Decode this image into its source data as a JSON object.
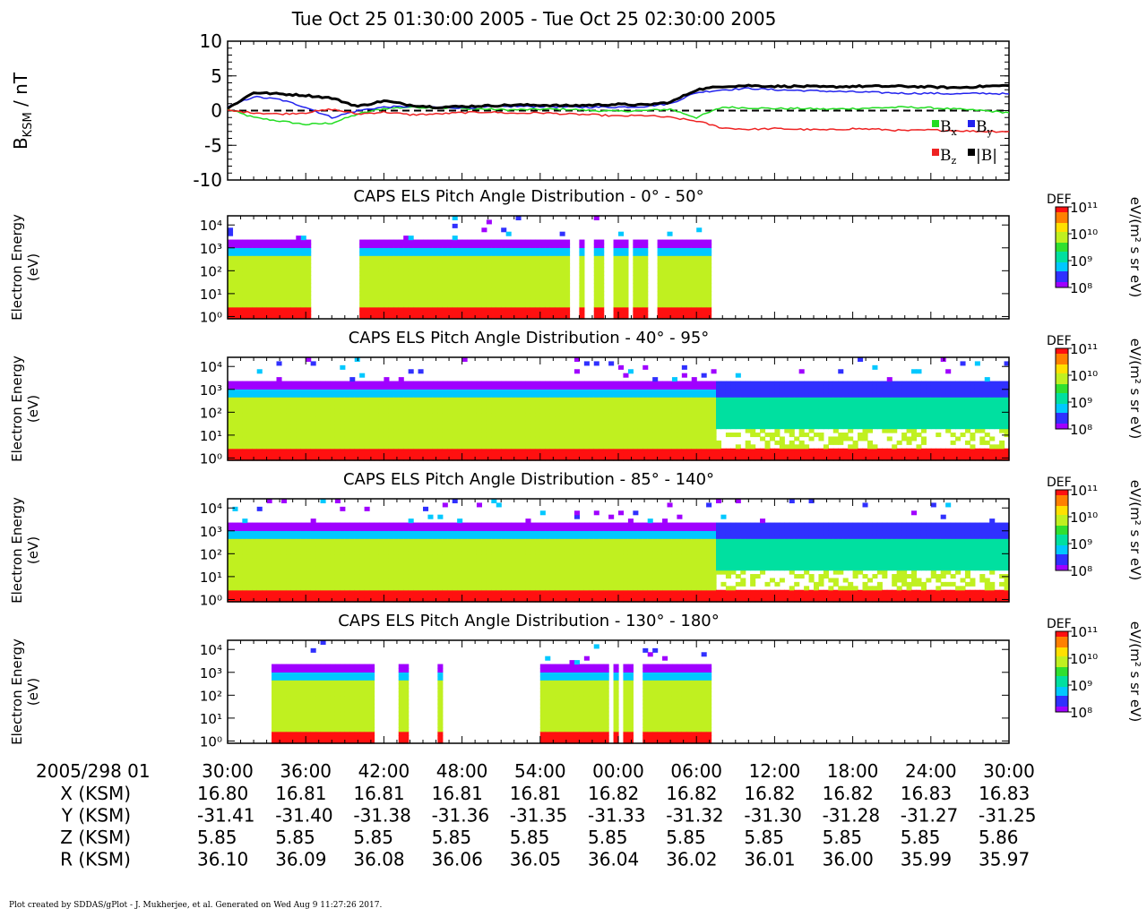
{
  "main_title": "Tue Oct 25 01:30:00 2005 - Tue Oct 25 02:30:00 2005",
  "footer": "Plot created by SDDAS/gPlot - J. Mukherjee, et al.  Generated on Wed Aug 9 11:27:26 2017.",
  "colors": {
    "bx": "#22dd22",
    "by": "#2222ee",
    "bz": "#ee2222",
    "btot": "#000000",
    "colormap": [
      "#a000ff",
      "#3030ff",
      "#00c8ff",
      "#00e0a0",
      "#30e030",
      "#c0f020",
      "#ffe000",
      "#ff8000",
      "#ff1010"
    ]
  },
  "timeline": {
    "header": "2005/298 01",
    "ticks": [
      "30:00",
      "36:00",
      "42:00",
      "48:00",
      "54:00",
      "00:00",
      "06:00",
      "12:00",
      "18:00",
      "24:00",
      "30:00"
    ],
    "rows": [
      {
        "label": "X (KSM)",
        "values": [
          "16.80",
          "16.81",
          "16.81",
          "16.81",
          "16.81",
          "16.82",
          "16.82",
          "16.82",
          "16.82",
          "16.83",
          "16.83"
        ]
      },
      {
        "label": "Y (KSM)",
        "values": [
          "-31.41",
          "-31.40",
          "-31.38",
          "-31.36",
          "-31.35",
          "-31.33",
          "-31.32",
          "-31.30",
          "-31.28",
          "-31.27",
          "-31.25"
        ]
      },
      {
        "label": "Z (KSM)",
        "values": [
          "5.85",
          "5.85",
          "5.85",
          "5.85",
          "5.85",
          "5.85",
          "5.85",
          "5.85",
          "5.85",
          "5.85",
          "5.86"
        ]
      },
      {
        "label": "R (KSM)",
        "values": [
          "36.10",
          "36.09",
          "36.08",
          "36.06",
          "36.05",
          "36.04",
          "36.02",
          "36.01",
          "36.00",
          "35.99",
          "35.97"
        ]
      }
    ]
  },
  "chart_data": [
    {
      "type": "line",
      "ylabel": "B_KSM / nT",
      "ylim": [
        -10,
        10
      ],
      "yticks": [
        "10",
        "5",
        "0",
        "-5",
        "-10"
      ],
      "zero_line": "dashed",
      "legend": [
        "Bx",
        "By",
        "Bz",
        "|B|"
      ],
      "x_minutes": [
        0,
        2,
        4,
        6,
        8,
        10,
        12,
        14,
        16,
        18,
        20,
        22,
        24,
        26,
        28,
        30,
        32,
        34,
        36,
        38,
        40,
        42,
        44,
        46,
        48,
        50,
        52,
        54,
        56,
        58,
        60
      ],
      "series": [
        {
          "name": "Bx",
          "values": [
            0.2,
            -1.0,
            -1.5,
            -2.0,
            -1.8,
            -0.5,
            0.3,
            0.5,
            0.4,
            0.3,
            0.2,
            0.1,
            0.2,
            0.2,
            0.0,
            -0.1,
            0.0,
            0.2,
            -1.0,
            0.5,
            0.4,
            0.3,
            0.3,
            0.2,
            0.3,
            0.4,
            0.5,
            0.4,
            0.2,
            0.0,
            -0.3
          ]
        },
        {
          "name": "By",
          "values": [
            0.5,
            2.0,
            1.6,
            0.5,
            -1.0,
            0.0,
            0.5,
            0.6,
            0.5,
            0.4,
            0.5,
            0.6,
            0.6,
            0.5,
            0.5,
            0.5,
            0.6,
            1.0,
            2.6,
            3.0,
            3.2,
            3.0,
            2.9,
            2.8,
            2.7,
            2.6,
            2.5,
            2.5,
            2.4,
            2.5,
            2.4
          ]
        },
        {
          "name": "Bz",
          "values": [
            0.0,
            -0.3,
            -0.5,
            -0.3,
            0.2,
            -0.5,
            -0.2,
            -0.6,
            -0.5,
            -0.3,
            -0.2,
            -0.4,
            -0.3,
            -0.5,
            -0.6,
            -0.8,
            -0.7,
            -1.0,
            -1.5,
            -2.5,
            -2.7,
            -2.6,
            -2.7,
            -2.8,
            -2.6,
            -2.7,
            -2.9,
            -2.8,
            -2.9,
            -3.0,
            -3.0
          ]
        },
        {
          "name": "|B|",
          "values": [
            0.3,
            2.6,
            2.4,
            2.2,
            1.8,
            0.6,
            1.4,
            0.8,
            0.5,
            0.6,
            0.7,
            0.8,
            0.8,
            0.7,
            0.8,
            0.9,
            0.8,
            1.2,
            3.0,
            3.5,
            3.6,
            3.5,
            3.5,
            3.4,
            3.5,
            3.5,
            3.5,
            3.4,
            3.3,
            3.5,
            3.6
          ]
        }
      ]
    },
    {
      "type": "heatmap",
      "title": "CAPS ELS Pitch Angle Distribution - 0° - 50°",
      "ylabel_lines": [
        "Electron Energy",
        "(eV)"
      ],
      "yticks": [
        "10⁰",
        "10¹",
        "10²",
        "10³",
        "10⁴"
      ],
      "colorbar": {
        "label": "DEF",
        "units": "eV/(m² s sr eV)",
        "ticks": [
          "10⁸",
          "10⁹",
          "10¹⁰",
          "10¹¹"
        ]
      },
      "coverage_minutes": [
        [
          0,
          6.3
        ],
        [
          10.3,
          26.3
        ],
        [
          27.0,
          27.5
        ],
        [
          28.0,
          29.0
        ],
        [
          29.5,
          30.7
        ],
        [
          31.0,
          32.4
        ],
        [
          33.0,
          37.0
        ]
      ],
      "energy_peak_eV": [
        2,
        200
      ]
    },
    {
      "type": "heatmap",
      "title": "CAPS ELS Pitch Angle Distribution - 40° - 95°",
      "ylabel_lines": [
        "Electron Energy",
        "(eV)"
      ],
      "yticks": [
        "10⁰",
        "10¹",
        "10²",
        "10³",
        "10⁴"
      ],
      "colorbar": {
        "label": "DEF",
        "units": "eV/(m² s sr eV)",
        "ticks": [
          "10⁸",
          "10⁹",
          "10¹⁰",
          "10¹¹"
        ]
      },
      "coverage_minutes": [
        [
          0,
          60
        ]
      ],
      "energy_peak_eV": [
        2,
        200
      ]
    },
    {
      "type": "heatmap",
      "title": "CAPS ELS Pitch Angle Distribution - 85° - 140°",
      "ylabel_lines": [
        "Electron Energy",
        "(eV)"
      ],
      "yticks": [
        "10⁰",
        "10¹",
        "10²",
        "10³",
        "10⁴"
      ],
      "colorbar": {
        "label": "DEF",
        "units": "eV/(m² s sr eV)",
        "ticks": [
          "10⁸",
          "10⁹",
          "10¹⁰",
          "10¹¹"
        ]
      },
      "coverage_minutes": [
        [
          0,
          60
        ]
      ],
      "energy_peak_eV": [
        2,
        200
      ]
    },
    {
      "type": "heatmap",
      "title": "CAPS ELS Pitch Angle Distribution - 130° - 180°",
      "ylabel_lines": [
        "Electron Energy",
        "(eV)"
      ],
      "yticks": [
        "10⁰",
        "10¹",
        "10²",
        "10³",
        "10⁴"
      ],
      "colorbar": {
        "label": "DEF",
        "units": "eV/(m² s sr eV)",
        "ticks": [
          "10⁸",
          "10⁹",
          "10¹⁰",
          "10¹¹"
        ]
      },
      "coverage_minutes": [
        [
          3.3,
          10.0
        ],
        [
          10.3,
          10.7
        ],
        [
          11.0,
          11.3
        ],
        [
          13.3,
          13.8
        ],
        [
          16.3,
          16.6
        ],
        [
          24.0,
          29.3
        ],
        [
          29.8,
          30.1
        ],
        [
          30.4,
          31.0
        ],
        [
          32.0,
          37.0
        ]
      ],
      "energy_peak_eV": [
        2,
        200
      ]
    }
  ]
}
